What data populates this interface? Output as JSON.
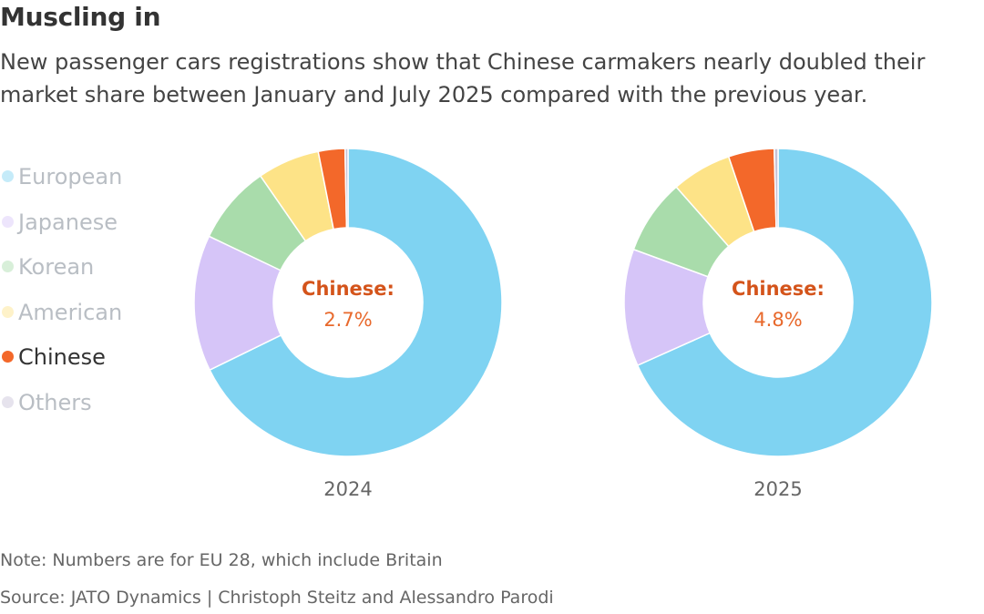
{
  "title": "Muscling in",
  "subtitle": "New passenger cars registrations show that Chinese carmakers nearly doubled their market share between January and July 2025 compared with the previous year.",
  "legend": [
    {
      "label": "European",
      "color": "#7fd3f2",
      "active": false
    },
    {
      "label": "Japanese",
      "color": "#d6c5f8",
      "active": false
    },
    {
      "label": "Korean",
      "color": "#a9dcab",
      "active": false
    },
    {
      "label": "American",
      "color": "#fde387",
      "active": false
    },
    {
      "label": "Chinese",
      "color": "#f3682a",
      "active": true
    },
    {
      "label": "Others",
      "color": "#c8c2d6",
      "active": false
    }
  ],
  "chart_data": [
    {
      "type": "pie",
      "year_label": "2024",
      "categories": [
        "European",
        "Japanese",
        "Korean",
        "American",
        "Chinese",
        "Others"
      ],
      "values": [
        65.4,
        13.8,
        8.0,
        6.3,
        2.7,
        0.3
      ],
      "center_label": "Chinese:",
      "center_value": "2.7%"
    },
    {
      "type": "pie",
      "year_label": "2025",
      "categories": [
        "European",
        "Japanese",
        "Korean",
        "American",
        "Chinese",
        "Others"
      ],
      "values": [
        68.3,
        12.3,
        7.9,
        6.3,
        4.8,
        0.4
      ],
      "center_label": "Chinese:",
      "center_value": "4.8%"
    }
  ],
  "colors": {
    "european": "#7fd3f2",
    "japanese": "#d6c5f8",
    "korean": "#a9dcab",
    "american": "#fde387",
    "chinese": "#f3682a",
    "others": "#c8c2d6",
    "center_label": "#d4541b",
    "center_value": "#e8692c"
  },
  "footer": {
    "note": "Note: Numbers are for EU 28, which include Britain",
    "source": "Source: JATO Dynamics | Christoph Steitz and Alessandro Parodi"
  }
}
